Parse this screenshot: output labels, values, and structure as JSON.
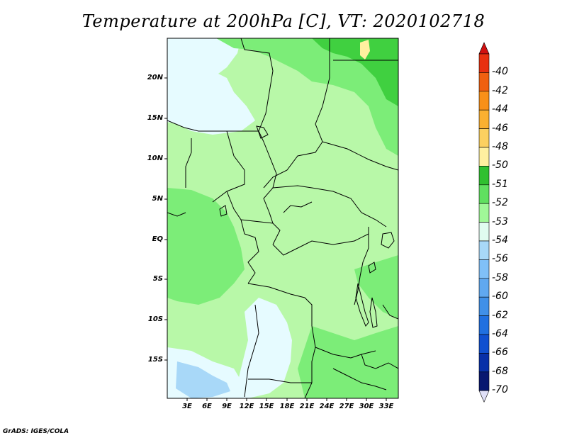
{
  "title": "Temperature at 200hPa [C], VT: 2020102718",
  "credit": "GrADS: IGES/COLA",
  "map": {
    "lat_labels": [
      "20N",
      "15N",
      "10N",
      "5N",
      "EQ",
      "5S",
      "10S",
      "15S"
    ],
    "lon_labels": [
      "3E",
      "6E",
      "9E",
      "12E",
      "15E",
      "18E",
      "21E",
      "24E",
      "27E",
      "30E",
      "33E"
    ],
    "fill_colors": {
      "lightest_blue": "#e6fbff",
      "light_blue": "#a8d8f8",
      "light_green": "#b8f8a8",
      "mid_green": "#7ced78",
      "green": "#40d040",
      "yellow": "#fff0a0"
    }
  },
  "colorbar": {
    "labels": [
      "-40",
      "-42",
      "-44",
      "-46",
      "-48",
      "-50",
      "-51",
      "-52",
      "-53",
      "-54",
      "-56",
      "-58",
      "-60",
      "-62",
      "-64",
      "-66",
      "-68",
      "-70"
    ],
    "colors": [
      "#e83010",
      "#f06010",
      "#f89018",
      "#fab030",
      "#fcd060",
      "#fff0a0",
      "#30c030",
      "#60e060",
      "#a0f898",
      "#e0fcf0",
      "#a8d8f8",
      "#80c0f8",
      "#60a8f0",
      "#4090e8",
      "#2070e0",
      "#1050d0",
      "#0830a8",
      "#081870"
    ],
    "top_arrow_color": "#d01010",
    "bottom_arrow_color": "#e0e0f8"
  }
}
